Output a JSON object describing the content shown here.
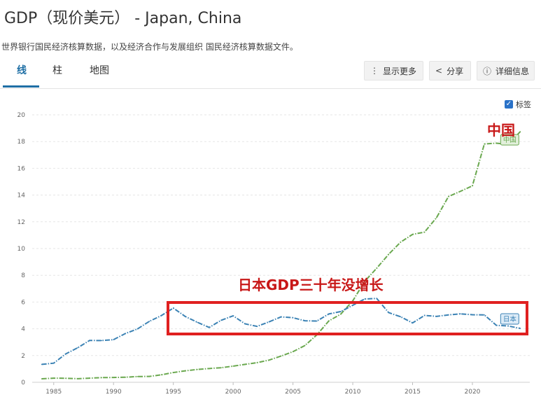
{
  "header": {
    "title": "GDP（现价美元） - Japan, China",
    "subtitle": "世界银行国民经济核算数据，以及经济合作与发展组织 国民经济核算数据文件。"
  },
  "tabs": [
    {
      "label": "线",
      "active": true
    },
    {
      "label": "柱",
      "active": false
    },
    {
      "label": "地图",
      "active": false
    }
  ],
  "actions": {
    "more": {
      "label": "显示更多",
      "icon": "kebab-icon"
    },
    "share": {
      "label": "分享",
      "icon": "share-icon"
    },
    "details": {
      "label": "详细信息",
      "icon": "info-icon"
    }
  },
  "legend_toggle": {
    "label": "标签",
    "checked": true
  },
  "annotations": {
    "china": "中国",
    "japan_note": "日本GDP三十年没增长"
  },
  "colors": {
    "china": "#6aa84f",
    "japan": "#3b82b4",
    "accent": "#1f6fa5",
    "highlight": "#e02020"
  },
  "chart_data": {
    "type": "line",
    "x": [
      1984,
      1985,
      1986,
      1987,
      1988,
      1989,
      1990,
      1991,
      1992,
      1993,
      1994,
      1995,
      1996,
      1997,
      1998,
      1999,
      2000,
      2001,
      2002,
      2003,
      2004,
      2005,
      2006,
      2007,
      2008,
      2009,
      2010,
      2011,
      2012,
      2013,
      2014,
      2015,
      2016,
      2017,
      2018,
      2019,
      2020,
      2021,
      2022,
      2023,
      2024
    ],
    "x_ticks": [
      1985,
      1990,
      1995,
      2000,
      2005,
      2010,
      2015,
      2020
    ],
    "y_ticks": [
      0,
      2,
      4,
      6,
      8,
      10,
      12,
      14,
      16,
      18,
      20
    ],
    "ylim": [
      0,
      20
    ],
    "grid": "horizontal",
    "series": [
      {
        "name": "中国",
        "color": "#6aa84f",
        "values": [
          0.26,
          0.31,
          0.3,
          0.27,
          0.31,
          0.35,
          0.36,
          0.38,
          0.43,
          0.44,
          0.56,
          0.73,
          0.86,
          0.96,
          1.03,
          1.09,
          1.21,
          1.34,
          1.47,
          1.66,
          1.96,
          2.29,
          2.75,
          3.55,
          4.59,
          5.1,
          6.09,
          7.55,
          8.53,
          9.57,
          10.48,
          11.06,
          11.23,
          12.31,
          13.89,
          14.28,
          14.69,
          17.82,
          17.88,
          17.79,
          18.74
        ]
      },
      {
        "name": "日本",
        "color": "#3b82b4",
        "values": [
          1.34,
          1.43,
          2.12,
          2.58,
          3.13,
          3.12,
          3.19,
          3.65,
          3.99,
          4.56,
          4.99,
          5.55,
          4.92,
          4.49,
          4.1,
          4.64,
          4.97,
          4.37,
          4.18,
          4.52,
          4.89,
          4.83,
          4.6,
          4.58,
          5.11,
          5.29,
          5.76,
          6.23,
          6.27,
          5.21,
          4.9,
          4.44,
          5.0,
          4.93,
          5.04,
          5.12,
          5.05,
          5.04,
          4.26,
          4.21,
          4.03
        ]
      }
    ]
  }
}
